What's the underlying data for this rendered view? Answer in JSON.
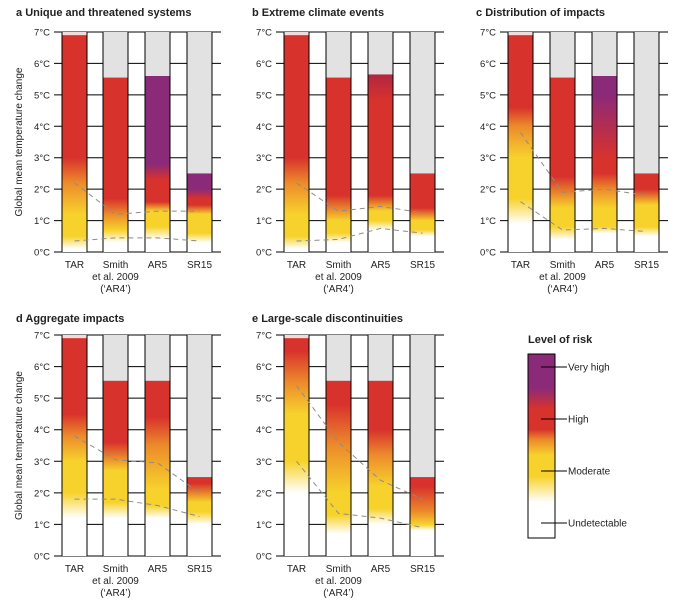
{
  "chart_data": {
    "type": "bar",
    "description_kind": "burning-embers",
    "ylabel": "Global mean temperature change",
    "ylim": [
      0,
      7
    ],
    "yticks": [
      "0°C",
      "1°C",
      "2°C",
      "3°C",
      "4°C",
      "5°C",
      "6°C",
      "7°C"
    ],
    "categories": [
      "TAR",
      "Smith|et al. 2009|(‘AR4’)",
      "AR5",
      "SR15"
    ],
    "colors": {
      "white": "#ffffff",
      "yellow": "#f7d22c",
      "orange": "#ec8b2b",
      "red": "#d8322c",
      "darkred": "#b3283f",
      "purple": "#8b2a78",
      "gray": "#e2e2e2",
      "dash": "#8c8c8c"
    },
    "panels": [
      {
        "letter": "a",
        "title": "Unique and threatened systems",
        "show_ylabel": true,
        "bars": [
          {
            "top": 6.9,
            "stops": [
              [
                0.1,
                "white"
              ],
              [
                0.5,
                "yellow"
              ],
              [
                1.2,
                "yellow"
              ],
              [
                2.2,
                "orange"
              ],
              [
                3.0,
                "red"
              ]
            ]
          },
          {
            "top": 5.55,
            "stops": [
              [
                0.3,
                "white"
              ],
              [
                0.7,
                "yellow"
              ],
              [
                1.2,
                "orange"
              ],
              [
                1.7,
                "red"
              ]
            ]
          },
          {
            "top": 5.6,
            "stops": [
              [
                0.4,
                "white"
              ],
              [
                0.8,
                "yellow"
              ],
              [
                1.3,
                "yellow"
              ],
              [
                1.6,
                "red"
              ],
              [
                2.3,
                "red"
              ],
              [
                2.8,
                "purple"
              ]
            ]
          },
          {
            "top": 2.5,
            "stops": [
              [
                0.3,
                "white"
              ],
              [
                0.6,
                "yellow"
              ],
              [
                1.2,
                "yellow"
              ],
              [
                1.5,
                "red"
              ],
              [
                1.7,
                "red"
              ],
              [
                2.0,
                "purple"
              ]
            ]
          }
        ],
        "dashed": [
          [
            2.2,
            1.2,
            1.3,
            1.3
          ],
          [
            0.35,
            0.45,
            0.45,
            0.35
          ]
        ]
      },
      {
        "letter": "b",
        "title": "Extreme climate events",
        "show_ylabel": false,
        "bars": [
          {
            "top": 6.9,
            "stops": [
              [
                0.1,
                "white"
              ],
              [
                0.5,
                "yellow"
              ],
              [
                1.2,
                "yellow"
              ],
              [
                2.2,
                "orange"
              ],
              [
                3.0,
                "red"
              ]
            ]
          },
          {
            "top": 5.55,
            "stops": [
              [
                0.3,
                "white"
              ],
              [
                0.6,
                "yellow"
              ],
              [
                1.0,
                "yellow"
              ],
              [
                1.8,
                "red"
              ]
            ]
          },
          {
            "top": 5.65,
            "stops": [
              [
                0.7,
                "white"
              ],
              [
                1.0,
                "yellow"
              ],
              [
                1.3,
                "yellow"
              ],
              [
                1.8,
                "red"
              ],
              [
                4.8,
                "red"
              ],
              [
                5.6,
                "darkred"
              ]
            ]
          },
          {
            "top": 2.5,
            "stops": [
              [
                0.5,
                "white"
              ],
              [
                0.7,
                "yellow"
              ],
              [
                1.0,
                "yellow"
              ],
              [
                1.4,
                "red"
              ]
            ]
          }
        ],
        "dashed": [
          [
            2.2,
            1.3,
            1.45,
            1.25
          ],
          [
            0.35,
            0.4,
            0.75,
            0.6
          ]
        ]
      },
      {
        "letter": "c",
        "title": "Distribution of impacts",
        "show_ylabel": false,
        "bars": [
          {
            "top": 6.9,
            "stops": [
              [
                0.9,
                "white"
              ],
              [
                1.7,
                "yellow"
              ],
              [
                3.0,
                "yellow"
              ],
              [
                4.0,
                "orange"
              ],
              [
                4.6,
                "red"
              ]
            ]
          },
          {
            "top": 5.55,
            "stops": [
              [
                0.4,
                "white"
              ],
              [
                0.8,
                "yellow"
              ],
              [
                1.4,
                "yellow"
              ],
              [
                2.4,
                "red"
              ]
            ]
          },
          {
            "top": 5.6,
            "stops": [
              [
                0.6,
                "white"
              ],
              [
                0.8,
                "yellow"
              ],
              [
                1.4,
                "yellow"
              ],
              [
                2.0,
                "orange"
              ],
              [
                2.5,
                "red"
              ],
              [
                3.0,
                "red"
              ],
              [
                5.0,
                "purple"
              ]
            ]
          },
          {
            "top": 2.5,
            "stops": [
              [
                0.5,
                "white"
              ],
              [
                0.8,
                "yellow"
              ],
              [
                1.5,
                "yellow"
              ],
              [
                2.0,
                "red"
              ]
            ]
          }
        ],
        "dashed": [
          [
            3.8,
            1.9,
            2.0,
            1.8
          ],
          [
            1.6,
            0.7,
            0.75,
            0.65
          ]
        ]
      },
      {
        "letter": "d",
        "title": "Aggregate impacts",
        "show_ylabel": true,
        "bars": [
          {
            "top": 6.9,
            "stops": [
              [
                1.2,
                "white"
              ],
              [
                2.0,
                "yellow"
              ],
              [
                3.0,
                "yellow"
              ],
              [
                3.8,
                "orange"
              ],
              [
                4.5,
                "red"
              ]
            ]
          },
          {
            "top": 5.55,
            "stops": [
              [
                1.2,
                "white"
              ],
              [
                1.7,
                "yellow"
              ],
              [
                2.7,
                "yellow"
              ],
              [
                3.6,
                "red"
              ]
            ]
          },
          {
            "top": 5.55,
            "stops": [
              [
                1.2,
                "white"
              ],
              [
                1.6,
                "yellow"
              ],
              [
                2.1,
                "yellow"
              ],
              [
                3.5,
                "orange"
              ],
              [
                4.4,
                "red"
              ]
            ]
          },
          {
            "top": 2.5,
            "stops": [
              [
                1.0,
                "white"
              ],
              [
                1.4,
                "yellow"
              ],
              [
                1.7,
                "yellow"
              ],
              [
                2.3,
                "red"
              ]
            ]
          }
        ],
        "dashed": [
          [
            3.8,
            3.05,
            2.95,
            2.0
          ],
          [
            1.8,
            1.8,
            1.6,
            1.25
          ]
        ]
      },
      {
        "letter": "e",
        "title": "Large-scale discontinuities",
        "show_ylabel": false,
        "bars": [
          {
            "top": 6.9,
            "stops": [
              [
                2.0,
                "white"
              ],
              [
                3.0,
                "yellow"
              ],
              [
                4.5,
                "yellow"
              ],
              [
                5.5,
                "orange"
              ],
              [
                6.5,
                "red"
              ]
            ]
          },
          {
            "top": 5.55,
            "stops": [
              [
                0.7,
                "white"
              ],
              [
                1.3,
                "yellow"
              ],
              [
                2.0,
                "yellow"
              ],
              [
                3.5,
                "orange"
              ],
              [
                4.8,
                "red"
              ]
            ]
          },
          {
            "top": 5.55,
            "stops": [
              [
                1.0,
                "white"
              ],
              [
                1.5,
                "yellow"
              ],
              [
                2.2,
                "yellow"
              ],
              [
                3.2,
                "orange"
              ],
              [
                4.0,
                "red"
              ]
            ]
          },
          {
            "top": 2.5,
            "stops": [
              [
                0.8,
                "white"
              ],
              [
                1.0,
                "yellow"
              ],
              [
                1.4,
                "orange"
              ],
              [
                2.2,
                "red"
              ]
            ]
          }
        ],
        "dashed": [
          [
            5.4,
            3.6,
            2.4,
            1.8
          ],
          [
            3.0,
            1.35,
            1.2,
            0.9
          ]
        ]
      }
    ],
    "legend": {
      "title": "Level of risk",
      "levels": [
        "Undetectable",
        "Moderate",
        "High",
        "Very high"
      ],
      "stops": [
        [
          0.4,
          "white"
        ],
        [
          0.9,
          "yellow"
        ],
        [
          1.3,
          "yellow"
        ],
        [
          1.6,
          "orange"
        ],
        [
          1.8,
          "red"
        ],
        [
          2.2,
          "red"
        ],
        [
          2.6,
          "purple"
        ]
      ]
    }
  }
}
